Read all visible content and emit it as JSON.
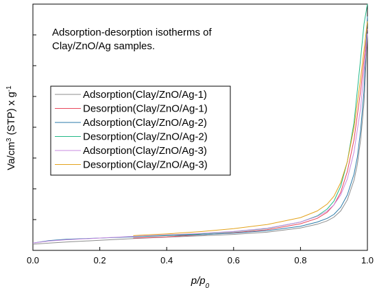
{
  "chart_data": {
    "type": "line",
    "annotation": [
      "Adsorption-desorption isotherms of",
      "Clay/ZnO/Ag samples."
    ],
    "ylabel_parts": {
      "base": "Va/cm",
      "sup1": "3",
      "mid": " (STP) x g",
      "sup2": "-1"
    },
    "xlabel": "p/p",
    "xlabel_sub": "0",
    "xlim": [
      0,
      1
    ],
    "ylim": [
      0,
      100
    ],
    "x_ticks": [
      "0.0",
      "0.2",
      "0.4",
      "0.6",
      "0.8",
      "1.0"
    ],
    "x_tick_values": [
      0,
      0.2,
      0.4,
      0.6,
      0.8,
      1.0
    ],
    "y_tick_values": [
      0,
      12.5,
      25,
      37.5,
      50,
      62.5,
      75,
      87.5,
      100
    ],
    "y_tick_labels_shown": false,
    "grid": false,
    "legend_position": "upper-left",
    "series": [
      {
        "name": "Adsorption(Clay/ZnO/Ag-1)",
        "color": "#8c8c8c",
        "x": [
          0.0,
          0.05,
          0.1,
          0.2,
          0.3,
          0.4,
          0.5,
          0.6,
          0.7,
          0.8,
          0.85,
          0.88,
          0.9,
          0.92,
          0.94,
          0.96,
          0.97,
          0.98,
          0.99,
          1.0
        ],
        "y": [
          2.5,
          3.0,
          3.4,
          4.1,
          4.8,
          5.4,
          5.9,
          6.5,
          7.4,
          9.1,
          10.6,
          12.0,
          13.5,
          16.0,
          20.5,
          28.5,
          35.0,
          45.0,
          60.0,
          88.0
        ]
      },
      {
        "name": "Desorption(Clay/ZnO/Ag-1)",
        "color": "#e8445a",
        "x": [
          0.3,
          0.4,
          0.5,
          0.6,
          0.7,
          0.8,
          0.85,
          0.88,
          0.9,
          0.92,
          0.94,
          0.96,
          0.98,
          1.0
        ],
        "y": [
          5.0,
          5.5,
          6.3,
          7.2,
          8.4,
          10.8,
          13.0,
          15.5,
          18.5,
          23.5,
          32.0,
          45.0,
          65.0,
          90.0
        ]
      },
      {
        "name": "Adsorption(Clay/ZnO/Ag-2)",
        "color": "#2a7aa8",
        "x": [
          0.0,
          0.05,
          0.1,
          0.2,
          0.3,
          0.4,
          0.5,
          0.6,
          0.7,
          0.8,
          0.85,
          0.88,
          0.9,
          0.92,
          0.94,
          0.96,
          0.97,
          0.98,
          0.99,
          1.0
        ],
        "y": [
          3.0,
          4.0,
          4.5,
          5.0,
          5.5,
          6.0,
          6.4,
          7.0,
          8.0,
          9.8,
          11.5,
          13.0,
          14.6,
          17.5,
          22.5,
          31.0,
          38.0,
          49.0,
          65.0,
          95.0
        ]
      },
      {
        "name": "Desorption(Clay/ZnO/Ag-2)",
        "color": "#20b886",
        "x": [
          0.3,
          0.4,
          0.5,
          0.6,
          0.7,
          0.8,
          0.85,
          0.88,
          0.9,
          0.92,
          0.94,
          0.96,
          0.98,
          0.99,
          1.0
        ],
        "y": [
          5.6,
          6.1,
          6.7,
          7.6,
          8.9,
          11.5,
          14.0,
          16.8,
          20.0,
          26.0,
          36.0,
          52.0,
          78.0,
          92.0,
          100.0
        ]
      },
      {
        "name": "Adsorption(Clay/ZnO/Ag-3)",
        "color": "#c88ae0",
        "x": [
          0.0,
          0.05,
          0.1,
          0.2,
          0.3,
          0.4,
          0.5,
          0.6,
          0.7,
          0.8,
          0.85,
          0.88,
          0.9,
          0.92,
          0.94,
          0.96,
          0.98,
          1.0
        ],
        "y": [
          3.0,
          3.8,
          4.3,
          5.0,
          5.7,
          6.3,
          6.9,
          7.7,
          9.0,
          11.5,
          13.8,
          16.0,
          18.5,
          22.5,
          29.0,
          40.0,
          58.0,
          88.0
        ]
      },
      {
        "name": "Desorption(Clay/ZnO/Ag-3)",
        "color": "#e3a21a",
        "x": [
          0.3,
          0.4,
          0.5,
          0.6,
          0.7,
          0.8,
          0.85,
          0.88,
          0.9,
          0.92,
          0.94,
          0.96,
          0.98,
          1.0
        ],
        "y": [
          6.0,
          6.7,
          7.6,
          8.8,
          10.5,
          13.3,
          16.0,
          18.8,
          22.0,
          27.5,
          36.0,
          50.0,
          70.0,
          93.0
        ]
      }
    ]
  }
}
